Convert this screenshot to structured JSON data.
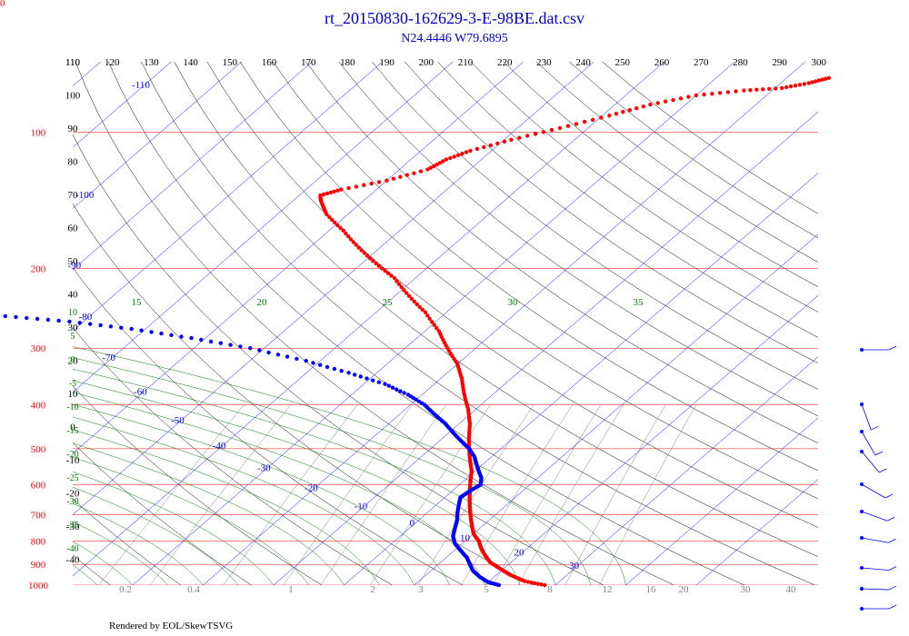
{
  "corner_label": "0",
  "title": "rt_20150830-162629-3-E-98BE.dat.csv",
  "subtitle": "N24.4446 W79.6895",
  "credit": "Rendered by EOL/SkewTSVG",
  "colors": {
    "temperature": "#ff0000",
    "dewpoint": "#0000ff",
    "isobar": "#ff0000",
    "isotherm": "#0000ff",
    "dry_adiabat": "#000000",
    "moist_adiabat": "#008000",
    "mixing_ratio": "#808080",
    "wind": "#0000ff"
  },
  "chart_data": {
    "type": "scatter",
    "kind": "skew-t log-p",
    "pressure_ticks": [
      "100",
      "200",
      "300",
      "400",
      "500",
      "600",
      "700",
      "800",
      "900",
      "1000"
    ],
    "top_temperature_ticks": [
      "110",
      "120",
      "130",
      "140",
      "150",
      "160",
      "170",
      "180",
      "190",
      "200",
      "210",
      "220",
      "230",
      "240",
      "250",
      "260",
      "270",
      "280",
      "290",
      "300"
    ],
    "isotherm_labels": [
      "-110",
      "-100",
      "-90",
      "-80",
      "-70",
      "-60",
      "-50",
      "-40",
      "-30",
      "-20",
      "-10",
      "0",
      "10",
      "20",
      "30"
    ],
    "left_labels_black": [
      "110",
      "100",
      "90",
      "80",
      "70",
      "60",
      "50",
      "40",
      "30",
      "20",
      "10",
      "0",
      "-10",
      "-20",
      "-30",
      "-40"
    ],
    "left_labels_green": [
      "10",
      "5",
      "0",
      "-5",
      "-10",
      "-15",
      "-20",
      "-25",
      "-30",
      "-35",
      "-40"
    ],
    "moist_labels_top": [
      "15",
      "20",
      "25",
      "30",
      "35"
    ],
    "mixing_ratio_labels": [
      "0.2",
      "0.4",
      "1",
      "2",
      "3",
      "5",
      "8",
      "12",
      "16",
      "20",
      "30",
      "40"
    ],
    "series": [
      {
        "name": "",
        "points": [
          [
            28.5,
            1000
          ],
          [
            25,
            980
          ],
          [
            22,
            950
          ],
          [
            19.5,
            920
          ],
          [
            17,
            890
          ],
          [
            15.2,
            860
          ],
          [
            13.5,
            830
          ],
          [
            12,
            800
          ],
          [
            10,
            770
          ],
          [
            8.5,
            740
          ],
          [
            7,
            710
          ],
          [
            5.5,
            680
          ],
          [
            4,
            650
          ],
          [
            2.5,
            620
          ],
          [
            1,
            590
          ],
          [
            -0.5,
            560
          ],
          [
            -2.5,
            530
          ],
          [
            -4.5,
            500
          ],
          [
            -6.5,
            470
          ],
          [
            -8.5,
            440
          ],
          [
            -11,
            410
          ],
          [
            -14,
            380
          ],
          [
            -17,
            350
          ],
          [
            -20,
            325
          ],
          [
            -24,
            300
          ],
          [
            -28,
            275
          ],
          [
            -33,
            250
          ],
          [
            -38,
            230
          ],
          [
            -43,
            210
          ],
          [
            -48,
            195
          ],
          [
            -53,
            180
          ],
          [
            -58,
            165
          ],
          [
            -63,
            152
          ],
          [
            -66,
            142
          ],
          [
            -67,
            138
          ],
          [
            -65,
            134
          ],
          [
            -60,
            128
          ],
          [
            -56,
            121
          ],
          [
            -55,
            115
          ],
          [
            -53,
            110
          ],
          [
            -49,
            104
          ],
          [
            -44,
            98
          ],
          [
            -39,
            92
          ],
          [
            -35,
            87
          ],
          [
            -30,
            83
          ],
          [
            -24,
            81
          ],
          [
            -19,
            80
          ],
          [
            -16,
            78
          ],
          [
            -14,
            76
          ]
        ]
      },
      {
        "name": "",
        "points": [
          [
            22,
            1000
          ],
          [
            20,
            985
          ],
          [
            18,
            960
          ],
          [
            16,
            930
          ],
          [
            14.5,
            900
          ],
          [
            13,
            870
          ],
          [
            11,
            840
          ],
          [
            9,
            810
          ],
          [
            7.5,
            780
          ],
          [
            6.5,
            750
          ],
          [
            5.5,
            720
          ],
          [
            4.2,
            690
          ],
          [
            3,
            660
          ],
          [
            2.2,
            640
          ],
          [
            2.5,
            620
          ],
          [
            3,
            600
          ],
          [
            2,
            580
          ],
          [
            0.5,
            560
          ],
          [
            -1,
            540
          ],
          [
            -2.5,
            520
          ],
          [
            -4.5,
            500
          ],
          [
            -7,
            480
          ],
          [
            -9.5,
            460
          ],
          [
            -12,
            440
          ],
          [
            -15,
            420
          ],
          [
            -18,
            400
          ],
          [
            -22,
            380
          ],
          [
            -27,
            360
          ],
          [
            -34,
            340
          ],
          [
            -42,
            320
          ],
          [
            -52,
            300
          ],
          [
            -62,
            285
          ],
          [
            -72,
            272
          ],
          [
            -82,
            262
          ],
          [
            -92,
            255
          ],
          [
            -100,
            250
          ]
        ]
      }
    ]
  }
}
